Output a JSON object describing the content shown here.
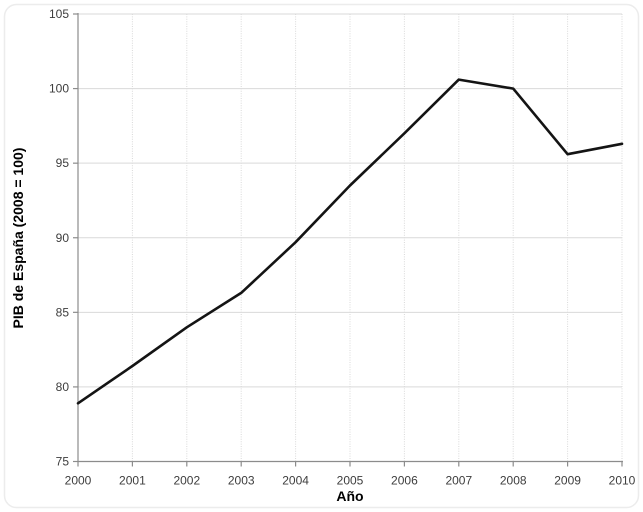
{
  "chart_data": {
    "type": "line",
    "title": "",
    "xlabel": "Año",
    "ylabel": "PIB de España (2008 = 100)",
    "categories": [
      "2000",
      "2001",
      "2002",
      "2003",
      "2004",
      "2005",
      "2006",
      "2007",
      "2008",
      "2009",
      "2010"
    ],
    "series": [
      {
        "name": "PIB de España (2008 = 100)",
        "values": [
          78.9,
          81.4,
          84.0,
          86.3,
          89.7,
          93.5,
          97.0,
          100.6,
          100.0,
          95.6,
          96.3
        ]
      }
    ],
    "ylim": [
      75,
      105
    ],
    "y_ticks": [
      "75",
      "80",
      "85",
      "90",
      "95",
      "100",
      "105"
    ],
    "grid": true,
    "legend": false,
    "colors": {
      "line": "#141414",
      "gridline": "#d9d9d9",
      "axis": "#8c8c8c",
      "tick_label": "#3d3d3d",
      "frame_border": "#ececec",
      "background": "#ffffff"
    }
  }
}
